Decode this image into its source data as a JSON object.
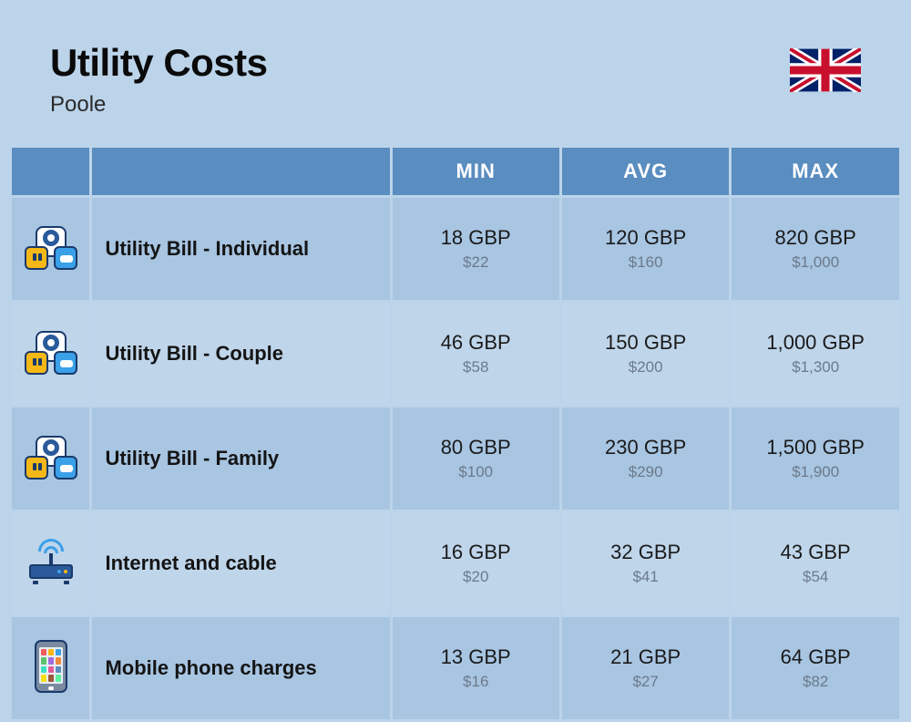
{
  "header": {
    "title": "Utility Costs",
    "subtitle": "Poole"
  },
  "columns": {
    "min": "MIN",
    "avg": "AVG",
    "max": "MAX"
  },
  "colors": {
    "page_bg": "#bcd4ea",
    "header_bg": "#5a8dc0",
    "row_even": "#a8c5e2",
    "row_odd": "#bfd5ea",
    "text_primary": "#1a1a1a",
    "text_secondary": "#6b7a8a",
    "header_text": "#ffffff"
  },
  "rows": [
    {
      "icon": "utility",
      "label": "Utility Bill - Individual",
      "min_primary": "18 GBP",
      "min_secondary": "$22",
      "avg_primary": "120 GBP",
      "avg_secondary": "$160",
      "max_primary": "820 GBP",
      "max_secondary": "$1,000"
    },
    {
      "icon": "utility",
      "label": "Utility Bill - Couple",
      "min_primary": "46 GBP",
      "min_secondary": "$58",
      "avg_primary": "150 GBP",
      "avg_secondary": "$200",
      "max_primary": "1,000 GBP",
      "max_secondary": "$1,300"
    },
    {
      "icon": "utility",
      "label": "Utility Bill - Family",
      "min_primary": "80 GBP",
      "min_secondary": "$100",
      "avg_primary": "230 GBP",
      "avg_secondary": "$290",
      "max_primary": "1,500 GBP",
      "max_secondary": "$1,900"
    },
    {
      "icon": "router",
      "label": "Internet and cable",
      "min_primary": "16 GBP",
      "min_secondary": "$20",
      "avg_primary": "32 GBP",
      "avg_secondary": "$41",
      "max_primary": "43 GBP",
      "max_secondary": "$54"
    },
    {
      "icon": "phone",
      "label": "Mobile phone charges",
      "min_primary": "13 GBP",
      "min_secondary": "$16",
      "avg_primary": "21 GBP",
      "avg_secondary": "$27",
      "max_primary": "64 GBP",
      "max_secondary": "$82"
    }
  ],
  "phone_app_colors": [
    "#f05a5a",
    "#f5b817",
    "#3aa0e8",
    "#5ac26a",
    "#a06ae0",
    "#f08a3a",
    "#3ae0c2",
    "#e05a9a",
    "#5a8dc0",
    "#f5e017",
    "#9a5a3a",
    "#5af0a0"
  ]
}
